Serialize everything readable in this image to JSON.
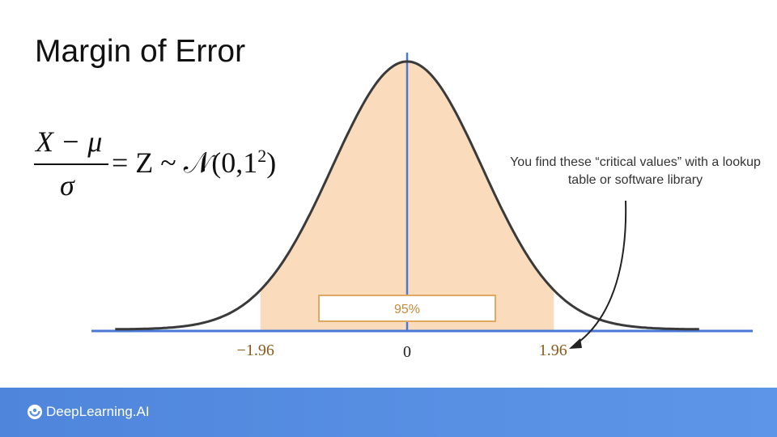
{
  "slide": {
    "title": "Margin of Error",
    "formula": {
      "numerator": "X − μ",
      "denominator": "σ",
      "rhs_main": "= Z ~ 𝒩(0,1",
      "rhs_exp": "2",
      "rhs_close": ")"
    },
    "annotation": "You find these “critical values” with a lookup table or software library"
  },
  "chart_data": {
    "type": "area",
    "distribution": "standard normal",
    "x_range": [
      -3.9,
      3.9
    ],
    "shaded_interval": [
      -1.96,
      1.96
    ],
    "center_value": 0,
    "tick_labels": [
      "−1.96",
      "0",
      "1.96"
    ],
    "shaded_label": "95%",
    "colors": {
      "curve": "#3a3a3a",
      "fill": "#f9d5b0",
      "axis": "#4a78d4",
      "critical_label": "#8a5a1a",
      "label_box_border": "#e0a860"
    }
  },
  "footer": {
    "brand": "DeepLearning.AI",
    "background": "#5890e4"
  }
}
